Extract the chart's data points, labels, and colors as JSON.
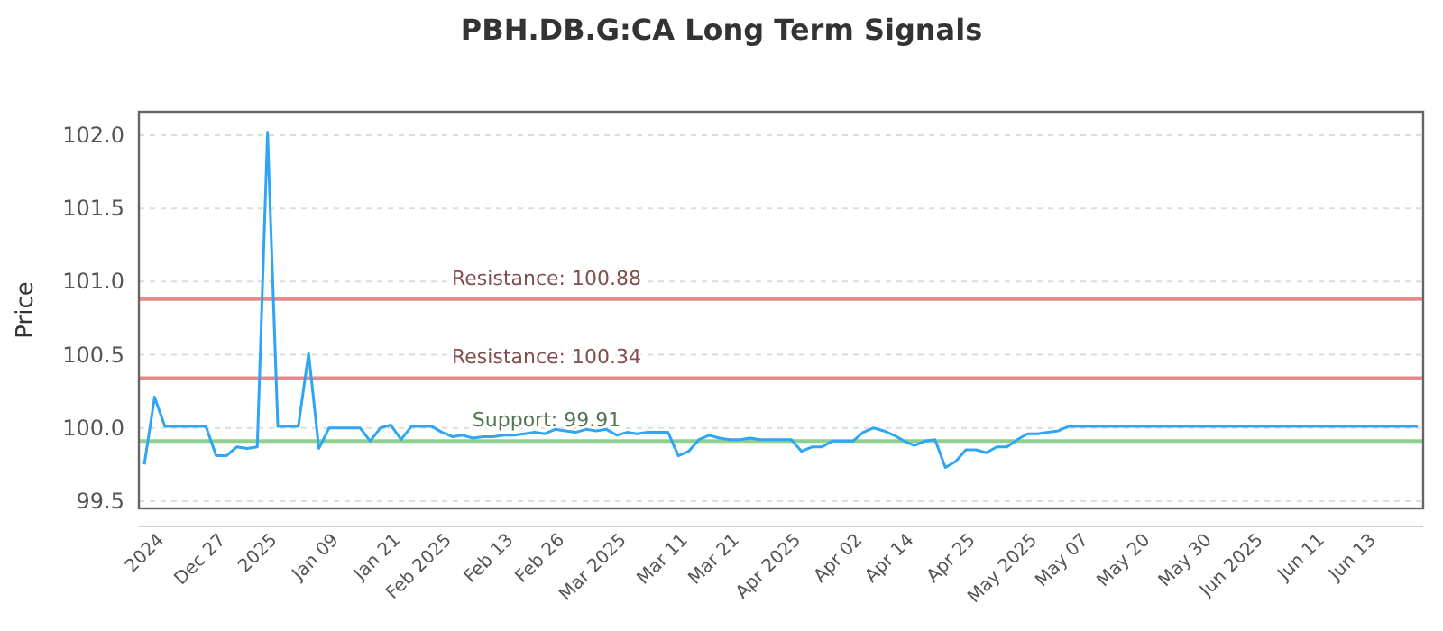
{
  "chart_data": {
    "type": "line",
    "title": "PBH.DB.G:CA Long Term Signals",
    "ylabel": "Price",
    "categories": [
      null,
      null,
      "2024",
      null,
      null,
      null,
      null,
      null,
      "Dec 27",
      null,
      null,
      null,
      null,
      "2025",
      null,
      null,
      null,
      null,
      null,
      "Jan 09",
      null,
      null,
      null,
      null,
      null,
      "Jan 21",
      null,
      null,
      null,
      null,
      "Feb 2025",
      null,
      null,
      null,
      null,
      null,
      "Feb 13",
      null,
      null,
      null,
      null,
      "Feb 26",
      null,
      null,
      null,
      null,
      null,
      "Mar 2025",
      null,
      null,
      null,
      null,
      null,
      "Mar 11",
      null,
      null,
      null,
      null,
      "Mar 21",
      null,
      null,
      null,
      null,
      null,
      "Apr 2025",
      null,
      null,
      null,
      null,
      null,
      "Apr 02",
      null,
      null,
      null,
      null,
      "Apr 14",
      null,
      null,
      null,
      null,
      null,
      "Apr 25",
      null,
      null,
      null,
      null,
      null,
      "May 2025",
      null,
      null,
      null,
      null,
      "May 07",
      null,
      null,
      null,
      null,
      null,
      "May 20",
      null,
      null,
      null,
      null,
      null,
      "May 30",
      null,
      null,
      null,
      null,
      "Jun 2025",
      null,
      null,
      null,
      null,
      null,
      "Jun 11",
      null,
      null,
      null,
      null,
      "Jun 13",
      null,
      null,
      null,
      null
    ],
    "series": [
      {
        "color": "#2ea6f5",
        "values": [
          99.75,
          100.21,
          100.01,
          100.01,
          100.01,
          100.01,
          100.01,
          99.81,
          99.81,
          99.87,
          99.86,
          99.87,
          102.02,
          100.01,
          100.01,
          100.01,
          100.51,
          99.86,
          100.0,
          100.0,
          100.0,
          100.0,
          99.91,
          100.0,
          100.02,
          99.92,
          100.01,
          100.01,
          100.01,
          99.97,
          99.94,
          99.95,
          99.93,
          99.94,
          99.94,
          99.95,
          99.95,
          99.96,
          99.97,
          99.96,
          99.99,
          99.98,
          99.97,
          99.99,
          99.98,
          99.99,
          99.95,
          99.97,
          99.96,
          99.97,
          99.97,
          99.97,
          99.81,
          99.84,
          99.92,
          99.95,
          99.93,
          99.92,
          99.92,
          99.93,
          99.92,
          99.92,
          99.92,
          99.92,
          99.84,
          99.87,
          99.87,
          99.91,
          99.91,
          99.91,
          99.97,
          100.0,
          99.98,
          99.95,
          99.91,
          99.88,
          99.91,
          99.92,
          99.73,
          99.77,
          99.85,
          99.85,
          99.83,
          99.87,
          99.87,
          99.92,
          99.96,
          99.96,
          99.97,
          99.98,
          100.01,
          100.01,
          100.01,
          100.01,
          100.01,
          100.01,
          100.01,
          100.01,
          100.01,
          100.01,
          100.01,
          100.01,
          100.01,
          100.01,
          100.01,
          100.01,
          100.01,
          100.01,
          100.01,
          100.01,
          100.01,
          100.01,
          100.01,
          100.01,
          100.01,
          100.01,
          100.01,
          100.01,
          100.01,
          100.01,
          100.01,
          100.01,
          100.01,
          100.01,
          100.01
        ]
      }
    ],
    "ylim": [
      99.45,
      102.16
    ],
    "yticks": [
      99.5,
      {
        "value": 100,
        "label": "100.0"
      },
      100.5,
      {
        "value": 101,
        "label": "101.0"
      },
      101.5,
      {
        "value": 102,
        "label": "102.0"
      }
    ],
    "grid": "y",
    "marker": "none",
    "line_style": "solid",
    "ref_lines": [
      {
        "axis": "y",
        "value": 100.88,
        "label": "Resistance: 100.88",
        "color": "#e88a8a"
      },
      {
        "axis": "y",
        "value": 100.34,
        "label": "Resistance: 100.34",
        "color": "#e88a8a"
      },
      {
        "axis": "y",
        "value": 99.91,
        "label": "Support: 99.91",
        "color": "#8fd08f"
      }
    ]
  }
}
